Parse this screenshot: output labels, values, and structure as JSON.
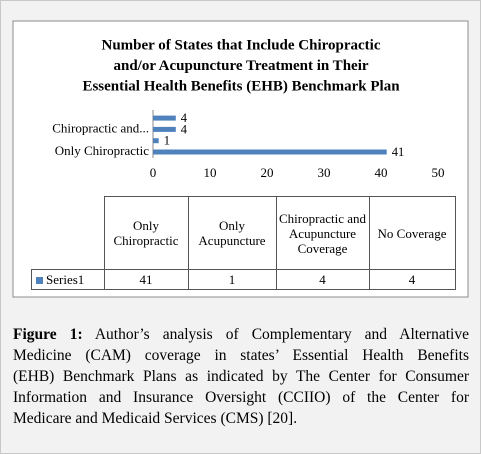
{
  "chart_data": {
    "type": "bar",
    "orientation": "horizontal",
    "title": [
      "Number of States that Include Chiropractic",
      "and/or Acupuncture Treatment in Their",
      "Essential Health Benefits (EHB) Benchmark Plan"
    ],
    "categories": [
      "Only Chiropractic",
      "Only Acupuncture",
      "Chiropractic and Acupuncture Coverage",
      "No Coverage"
    ],
    "axis_labels": [
      "Only Chiropractic",
      null,
      "Chiropractic and...",
      null
    ],
    "series": [
      {
        "name": "Series1",
        "color": "#4f81bd",
        "values": [
          41,
          1,
          4,
          4
        ]
      }
    ],
    "xlim": [
      0,
      50
    ],
    "xticks": [
      0,
      10,
      20,
      30,
      40,
      50
    ],
    "grid": false
  },
  "caption": {
    "label": "Figure 1:",
    "lines": [
      "Author’s analysis of Complementary and Alternative",
      "Medicine (CAM) coverage in states’ Essential Health Benefits",
      "(EHB) Benchmark Plans as indicated by The Center for Consumer",
      "Information and Insurance Oversight (CCIIO) of the Center for",
      "Medicare and Medicaid Services (CMS) [20]."
    ]
  }
}
